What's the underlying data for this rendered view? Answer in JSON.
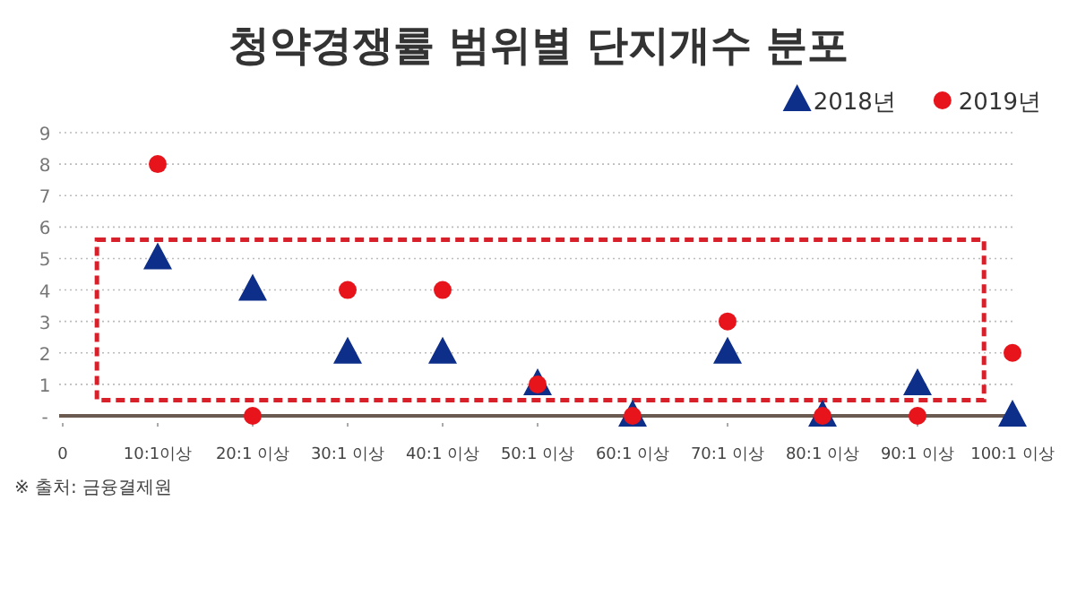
{
  "chart_data": {
    "type": "scatter",
    "title": "청약경쟁률 범위별 단지개수 분포",
    "categories": [
      "0",
      "10:1이상",
      "20:1 이상",
      "30:1 이상",
      "40:1 이상",
      "50:1 이상",
      "60:1 이상",
      "70:1 이상",
      "80:1 이상",
      "90:1 이상",
      "100:1 이상"
    ],
    "series": [
      {
        "name": "2018년",
        "color": "#0d2f8a",
        "marker": "triangle",
        "values": [
          null,
          5,
          4,
          2,
          2,
          1,
          0,
          2,
          0,
          1,
          0
        ]
      },
      {
        "name": "2019년",
        "color": "#e8141c",
        "marker": "circle",
        "values": [
          null,
          8,
          0,
          4,
          4,
          1,
          0,
          3,
          0,
          0,
          2
        ]
      }
    ],
    "ylim": [
      0,
      9
    ],
    "yticks": [
      {
        "value": 0,
        "label": "-"
      },
      1,
      2,
      3,
      4,
      5,
      6,
      7,
      8,
      9
    ],
    "grid": "y",
    "legend": "top right",
    "annotations": [
      "※ 출처: 금융결제원"
    ]
  }
}
